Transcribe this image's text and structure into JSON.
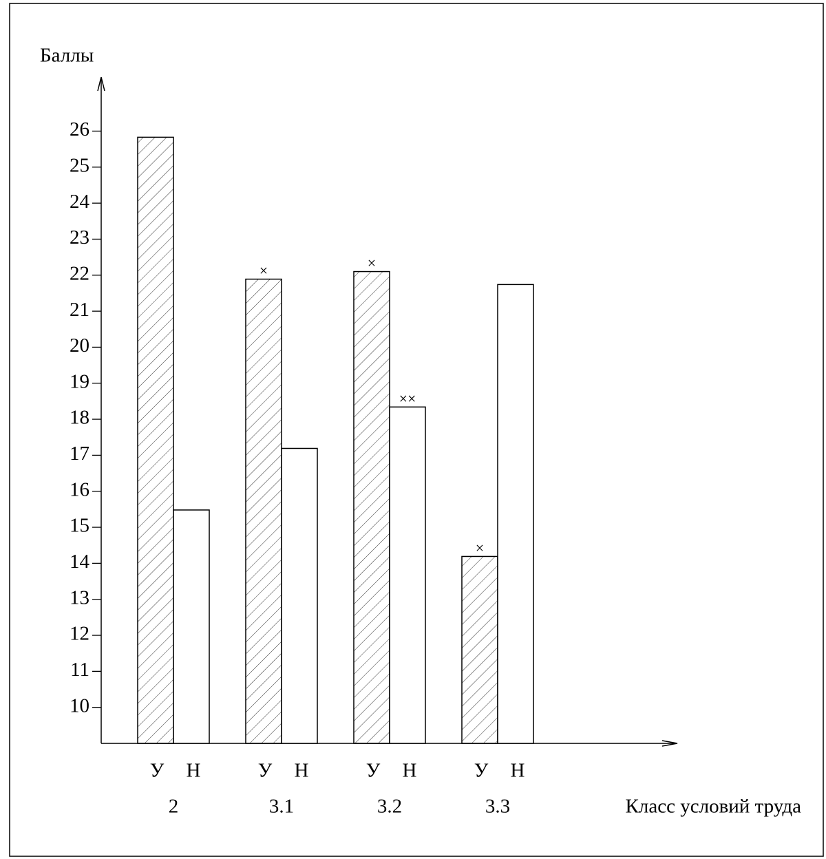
{
  "chart_data": {
    "type": "bar",
    "y_label": "Баллы",
    "x_label": "Класс условий труда",
    "categories": [
      "2",
      "3.1",
      "3.2",
      "3.3"
    ],
    "series": [
      {
        "name": "У",
        "pattern": "hatch",
        "values": [
          25.83,
          21.89,
          22.1,
          14.19
        ],
        "markers": [
          null,
          "×",
          "×",
          "×"
        ]
      },
      {
        "name": "Н",
        "pattern": "none",
        "values": [
          15.48,
          17.19,
          18.34,
          21.74
        ],
        "markers": [
          null,
          null,
          "××",
          null
        ]
      }
    ],
    "ylim": [
      9,
      27.5
    ],
    "yticks": [
      10,
      11,
      12,
      13,
      14,
      15,
      16,
      17,
      18,
      19,
      20,
      21,
      22,
      23,
      24,
      25,
      26
    ]
  }
}
